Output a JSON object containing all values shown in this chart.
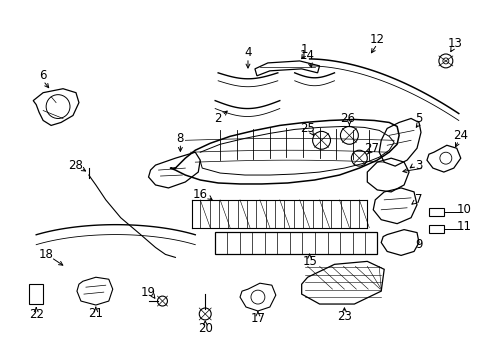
{
  "bg_color": "#ffffff",
  "fig_width": 4.89,
  "fig_height": 3.6,
  "dpi": 100,
  "label_fontsize": 8.5,
  "label_color": "#000000",
  "line_color": "#000000"
}
